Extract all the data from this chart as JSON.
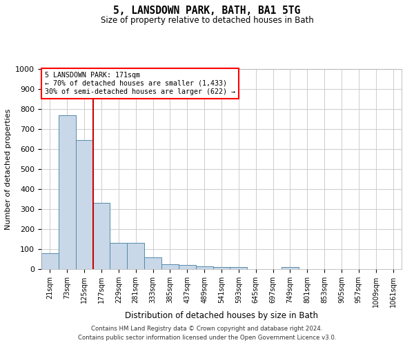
{
  "title": "5, LANSDOWN PARK, BATH, BA1 5TG",
  "subtitle": "Size of property relative to detached houses in Bath",
  "xlabel": "Distribution of detached houses by size in Bath",
  "ylabel": "Number of detached properties",
  "bin_labels": [
    "21sqm",
    "73sqm",
    "125sqm",
    "177sqm",
    "229sqm",
    "281sqm",
    "333sqm",
    "385sqm",
    "437sqm",
    "489sqm",
    "541sqm",
    "593sqm",
    "645sqm",
    "697sqm",
    "749sqm",
    "801sqm",
    "853sqm",
    "905sqm",
    "957sqm",
    "1009sqm",
    "1061sqm"
  ],
  "bar_heights": [
    80,
    770,
    645,
    330,
    130,
    130,
    60,
    25,
    20,
    15,
    10,
    10,
    0,
    0,
    10,
    0,
    0,
    0,
    0,
    0,
    0
  ],
  "bar_color": "#c8d8e8",
  "bar_edge_color": "#5588aa",
  "property_label": "5 LANSDOWN PARK: 171sqm",
  "annotation_line1": "← 70% of detached houses are smaller (1,433)",
  "annotation_line2": "30% of semi-detached houses are larger (622) →",
  "vline_color": "#cc0000",
  "vline_bin_index": 3,
  "ylim": [
    0,
    1000
  ],
  "yticks": [
    0,
    100,
    200,
    300,
    400,
    500,
    600,
    700,
    800,
    900,
    1000
  ],
  "footer_line1": "Contains HM Land Registry data © Crown copyright and database right 2024.",
  "footer_line2": "Contains public sector information licensed under the Open Government Licence v3.0.",
  "background_color": "#ffffff",
  "grid_color": "#cccccc"
}
